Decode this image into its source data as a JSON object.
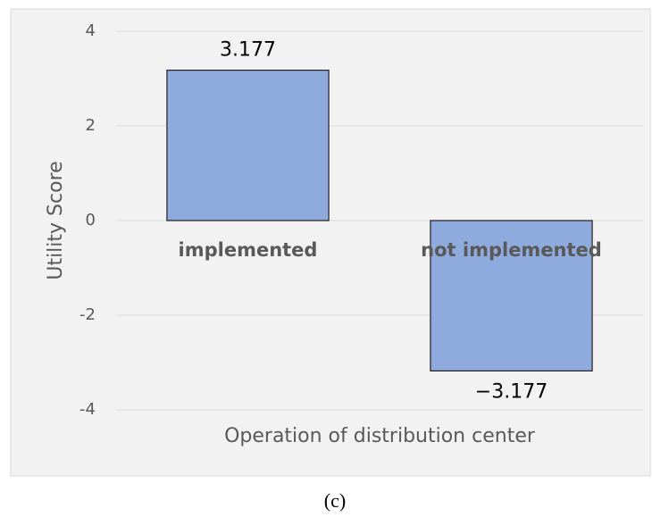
{
  "chart_data": {
    "type": "bar",
    "categories": [
      "implemented",
      "not implemented"
    ],
    "values": [
      3.177,
      -3.177
    ],
    "value_labels": [
      "3.177",
      "−3.177"
    ],
    "color": "#8faadc",
    "ylabel": "Utility Score",
    "xlabel": "Operation of distribution center",
    "ylim": [
      -4,
      4
    ],
    "yticks": [
      4,
      2,
      0,
      -2,
      -4
    ],
    "grid": true
  },
  "caption": "(c)"
}
